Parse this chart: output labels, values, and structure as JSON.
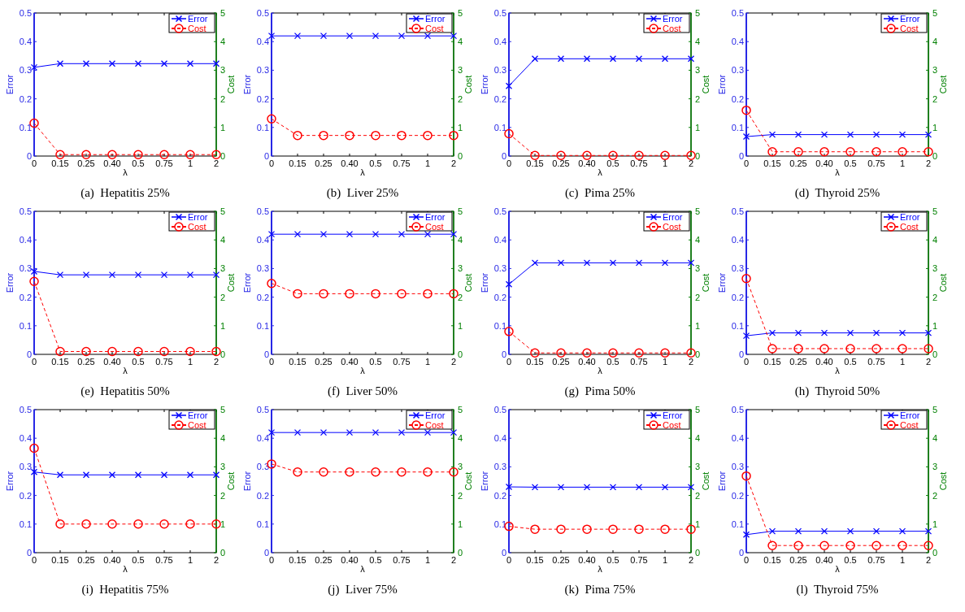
{
  "chart_data": [
    {
      "type": "line",
      "title": "(a)  Hepatitis 25%",
      "categories": [
        "0",
        "0.15",
        "0.25",
        "0.40",
        "0.5",
        "0.75",
        "1",
        "2"
      ],
      "xlabel": "λ",
      "ylabel": "Error",
      "y2label": "Cost",
      "ylim": [
        0,
        0.5
      ],
      "yticks": [
        0,
        0.1,
        0.2,
        0.3,
        0.4,
        0.5
      ],
      "y2lim": [
        0,
        5
      ],
      "y2ticks": [
        0,
        1,
        2,
        3,
        4,
        5
      ],
      "legend": "top right",
      "series": [
        {
          "name": "Error",
          "color": "#0000ff",
          "marker": "cross",
          "line_style": "solid",
          "values": [
            0.31,
            0.323,
            0.323,
            0.323,
            0.323,
            0.323,
            0.323,
            0.323
          ]
        },
        {
          "name": "Cost",
          "color": "#ff0000",
          "marker": "circle",
          "line_style": "dashed",
          "axis": "y2",
          "values": [
            1.15,
            0.05,
            0.05,
            0.05,
            0.05,
            0.05,
            0.05,
            0.05
          ]
        }
      ]
    },
    {
      "type": "line",
      "title": "(b)  Liver 25%",
      "categories": [
        "0",
        "0.15",
        "0.25",
        "0.40",
        "0.5",
        "0.75",
        "1",
        "2"
      ],
      "xlabel": "λ",
      "ylabel": "Error",
      "y2label": "Cost",
      "ylim": [
        0,
        0.5
      ],
      "yticks": [
        0,
        0.1,
        0.2,
        0.3,
        0.4,
        0.5
      ],
      "y2lim": [
        0,
        5
      ],
      "y2ticks": [
        0,
        1,
        2,
        3,
        4,
        5
      ],
      "legend": "top right",
      "series": [
        {
          "name": "Error",
          "color": "#0000ff",
          "marker": "cross",
          "line_style": "solid",
          "values": [
            0.42,
            0.42,
            0.42,
            0.42,
            0.42,
            0.42,
            0.42,
            0.42
          ]
        },
        {
          "name": "Cost",
          "color": "#ff0000",
          "marker": "circle",
          "line_style": "dashed",
          "axis": "y2",
          "values": [
            1.3,
            0.72,
            0.72,
            0.72,
            0.72,
            0.72,
            0.72,
            0.72
          ]
        }
      ]
    },
    {
      "type": "line",
      "title": "(c)  Pima 25%",
      "categories": [
        "0",
        "0.15",
        "0.25",
        "0.40",
        "0.5",
        "0.75",
        "1",
        "2"
      ],
      "xlabel": "λ",
      "ylabel": "Error",
      "y2label": "Cost",
      "ylim": [
        0,
        0.5
      ],
      "yticks": [
        0,
        0.1,
        0.2,
        0.3,
        0.4,
        0.5
      ],
      "y2lim": [
        0,
        5
      ],
      "y2ticks": [
        0,
        1,
        2,
        3,
        4,
        5
      ],
      "legend": "top right",
      "series": [
        {
          "name": "Error",
          "color": "#0000ff",
          "marker": "cross",
          "line_style": "solid",
          "values": [
            0.245,
            0.34,
            0.34,
            0.34,
            0.34,
            0.34,
            0.34,
            0.34
          ]
        },
        {
          "name": "Cost",
          "color": "#ff0000",
          "marker": "circle",
          "line_style": "dashed",
          "axis": "y2",
          "values": [
            0.78,
            0.02,
            0.02,
            0.02,
            0.02,
            0.02,
            0.02,
            0.02
          ]
        }
      ]
    },
    {
      "type": "line",
      "title": "(d)  Thyroid 25%",
      "categories": [
        "0",
        "0.15",
        "0.25",
        "0.40",
        "0.5",
        "0.75",
        "1",
        "2"
      ],
      "xlabel": "λ",
      "ylabel": "Error",
      "y2label": "Cost",
      "ylim": [
        0,
        0.5
      ],
      "yticks": [
        0,
        0.1,
        0.2,
        0.3,
        0.4,
        0.5
      ],
      "y2lim": [
        0,
        5
      ],
      "y2ticks": [
        0,
        1,
        2,
        3,
        4,
        5
      ],
      "legend": "top right",
      "series": [
        {
          "name": "Error",
          "color": "#0000ff",
          "marker": "cross",
          "line_style": "solid",
          "values": [
            0.068,
            0.075,
            0.075,
            0.075,
            0.075,
            0.075,
            0.075,
            0.075
          ]
        },
        {
          "name": "Cost",
          "color": "#ff0000",
          "marker": "circle",
          "line_style": "dashed",
          "axis": "y2",
          "values": [
            1.6,
            0.15,
            0.15,
            0.15,
            0.15,
            0.15,
            0.15,
            0.15
          ]
        }
      ]
    },
    {
      "type": "line",
      "title": "(e)  Hepatitis 50%",
      "categories": [
        "0",
        "0.15",
        "0.25",
        "0.40",
        "0.5",
        "0.75",
        "1",
        "2"
      ],
      "xlabel": "λ",
      "ylabel": "Error",
      "y2label": "Cost",
      "ylim": [
        0,
        0.5
      ],
      "yticks": [
        0,
        0.1,
        0.2,
        0.3,
        0.4,
        0.5
      ],
      "y2lim": [
        0,
        5
      ],
      "y2ticks": [
        0,
        1,
        2,
        3,
        4,
        5
      ],
      "legend": "top right",
      "series": [
        {
          "name": "Error",
          "color": "#0000ff",
          "marker": "cross",
          "line_style": "solid",
          "values": [
            0.29,
            0.278,
            0.278,
            0.278,
            0.278,
            0.278,
            0.278,
            0.278
          ]
        },
        {
          "name": "Cost",
          "color": "#ff0000",
          "marker": "circle",
          "line_style": "dashed",
          "axis": "y2",
          "values": [
            2.55,
            0.1,
            0.1,
            0.1,
            0.1,
            0.1,
            0.1,
            0.1
          ]
        }
      ]
    },
    {
      "type": "line",
      "title": "(f)  Liver 50%",
      "categories": [
        "0",
        "0.15",
        "0.25",
        "0.40",
        "0.5",
        "0.75",
        "1",
        "2"
      ],
      "xlabel": "λ",
      "ylabel": "Error",
      "y2label": "Cost",
      "ylim": [
        0,
        0.5
      ],
      "yticks": [
        0,
        0.1,
        0.2,
        0.3,
        0.4,
        0.5
      ],
      "y2lim": [
        0,
        5
      ],
      "y2ticks": [
        0,
        1,
        2,
        3,
        4,
        5
      ],
      "legend": "top right",
      "series": [
        {
          "name": "Error",
          "color": "#0000ff",
          "marker": "cross",
          "line_style": "solid",
          "values": [
            0.42,
            0.42,
            0.42,
            0.42,
            0.42,
            0.42,
            0.42,
            0.42
          ]
        },
        {
          "name": "Cost",
          "color": "#ff0000",
          "marker": "circle",
          "line_style": "dashed",
          "axis": "y2",
          "values": [
            2.48,
            2.12,
            2.12,
            2.12,
            2.12,
            2.12,
            2.12,
            2.12
          ]
        }
      ]
    },
    {
      "type": "line",
      "title": "(g)  Pima 50%",
      "categories": [
        "0",
        "0.15",
        "0.25",
        "0.40",
        "0.5",
        "0.75",
        "1",
        "2"
      ],
      "xlabel": "λ",
      "ylabel": "Error",
      "y2label": "Cost",
      "ylim": [
        0,
        0.5
      ],
      "yticks": [
        0,
        0.1,
        0.2,
        0.3,
        0.4,
        0.5
      ],
      "y2lim": [
        0,
        5
      ],
      "y2ticks": [
        0,
        1,
        2,
        3,
        4,
        5
      ],
      "legend": "top right",
      "series": [
        {
          "name": "Error",
          "color": "#0000ff",
          "marker": "cross",
          "line_style": "solid",
          "values": [
            0.245,
            0.32,
            0.32,
            0.32,
            0.32,
            0.32,
            0.32,
            0.32
          ]
        },
        {
          "name": "Cost",
          "color": "#ff0000",
          "marker": "circle",
          "line_style": "dashed",
          "axis": "y2",
          "values": [
            0.8,
            0.05,
            0.05,
            0.05,
            0.05,
            0.05,
            0.05,
            0.05
          ]
        }
      ]
    },
    {
      "type": "line",
      "title": "(h)  Thyroid 50%",
      "categories": [
        "0",
        "0.15",
        "0.25",
        "0.40",
        "0.5",
        "0.75",
        "1",
        "2"
      ],
      "xlabel": "λ",
      "ylabel": "Error",
      "y2label": "Cost",
      "ylim": [
        0,
        0.5
      ],
      "yticks": [
        0,
        0.1,
        0.2,
        0.3,
        0.4,
        0.5
      ],
      "y2lim": [
        0,
        5
      ],
      "y2ticks": [
        0,
        1,
        2,
        3,
        4,
        5
      ],
      "legend": "top right",
      "series": [
        {
          "name": "Error",
          "color": "#0000ff",
          "marker": "cross",
          "line_style": "solid",
          "values": [
            0.065,
            0.075,
            0.075,
            0.075,
            0.075,
            0.075,
            0.075,
            0.075
          ]
        },
        {
          "name": "Cost",
          "color": "#ff0000",
          "marker": "circle",
          "line_style": "dashed",
          "axis": "y2",
          "values": [
            2.65,
            0.2,
            0.2,
            0.2,
            0.2,
            0.2,
            0.2,
            0.2
          ]
        }
      ]
    },
    {
      "type": "line",
      "title": "(i)  Hepatitis 75%",
      "categories": [
        "0",
        "0.15",
        "0.25",
        "0.40",
        "0.5",
        "0.75",
        "1",
        "2"
      ],
      "xlabel": "λ",
      "ylabel": "Error",
      "y2label": "Cost",
      "ylim": [
        0,
        0.5
      ],
      "yticks": [
        0,
        0.1,
        0.2,
        0.3,
        0.4,
        0.5
      ],
      "y2lim": [
        0,
        5
      ],
      "y2ticks": [
        0,
        1,
        2,
        3,
        4,
        5
      ],
      "legend": "top right",
      "series": [
        {
          "name": "Error",
          "color": "#0000ff",
          "marker": "cross",
          "line_style": "solid",
          "values": [
            0.282,
            0.272,
            0.272,
            0.272,
            0.272,
            0.272,
            0.272,
            0.272
          ]
        },
        {
          "name": "Cost",
          "color": "#ff0000",
          "marker": "circle",
          "line_style": "dashed",
          "axis": "y2",
          "values": [
            3.65,
            1.0,
            1.0,
            1.0,
            1.0,
            1.0,
            1.0,
            1.0
          ]
        }
      ]
    },
    {
      "type": "line",
      "title": "(j)  Liver 75%",
      "categories": [
        "0",
        "0.15",
        "0.25",
        "0.40",
        "0.5",
        "0.75",
        "1",
        "2"
      ],
      "xlabel": "λ",
      "ylabel": "Error",
      "y2label": "Cost",
      "ylim": [
        0,
        0.5
      ],
      "yticks": [
        0,
        0.1,
        0.2,
        0.3,
        0.4,
        0.5
      ],
      "y2lim": [
        0,
        5
      ],
      "y2ticks": [
        0,
        1,
        2,
        3,
        4,
        5
      ],
      "legend": "top right",
      "series": [
        {
          "name": "Error",
          "color": "#0000ff",
          "marker": "cross",
          "line_style": "solid",
          "values": [
            0.42,
            0.42,
            0.42,
            0.42,
            0.42,
            0.42,
            0.42,
            0.42
          ]
        },
        {
          "name": "Cost",
          "color": "#ff0000",
          "marker": "circle",
          "line_style": "dashed",
          "axis": "y2",
          "values": [
            3.1,
            2.82,
            2.82,
            2.82,
            2.82,
            2.82,
            2.82,
            2.82
          ]
        }
      ]
    },
    {
      "type": "line",
      "title": "(k)  Pima 75%",
      "categories": [
        "0",
        "0.15",
        "0.25",
        "0.40",
        "0.5",
        "0.75",
        "1",
        "2"
      ],
      "xlabel": "λ",
      "ylabel": "Error",
      "y2label": "Cost",
      "ylim": [
        0,
        0.5
      ],
      "yticks": [
        0,
        0.1,
        0.2,
        0.3,
        0.4,
        0.5
      ],
      "y2lim": [
        0,
        5
      ],
      "y2ticks": [
        0,
        1,
        2,
        3,
        4,
        5
      ],
      "legend": "top right",
      "series": [
        {
          "name": "Error",
          "color": "#0000ff",
          "marker": "cross",
          "line_style": "solid",
          "values": [
            0.23,
            0.229,
            0.229,
            0.229,
            0.229,
            0.229,
            0.229,
            0.229
          ]
        },
        {
          "name": "Cost",
          "color": "#ff0000",
          "marker": "circle",
          "line_style": "dashed",
          "axis": "y2",
          "values": [
            0.92,
            0.82,
            0.82,
            0.82,
            0.82,
            0.82,
            0.82,
            0.82
          ]
        }
      ]
    },
    {
      "type": "line",
      "title": "(l)  Thyroid 75%",
      "categories": [
        "0",
        "0.15",
        "0.25",
        "0.40",
        "0.5",
        "0.75",
        "1",
        "2"
      ],
      "xlabel": "λ",
      "ylabel": "Error",
      "y2label": "Cost",
      "ylim": [
        0,
        0.5
      ],
      "yticks": [
        0,
        0.1,
        0.2,
        0.3,
        0.4,
        0.5
      ],
      "y2lim": [
        0,
        5
      ],
      "y2ticks": [
        0,
        1,
        2,
        3,
        4,
        5
      ],
      "legend": "top right",
      "series": [
        {
          "name": "Error",
          "color": "#0000ff",
          "marker": "cross",
          "line_style": "solid",
          "values": [
            0.063,
            0.075,
            0.075,
            0.075,
            0.075,
            0.075,
            0.075,
            0.075
          ]
        },
        {
          "name": "Cost",
          "color": "#ff0000",
          "marker": "circle",
          "line_style": "dashed",
          "axis": "y2",
          "values": [
            2.68,
            0.25,
            0.25,
            0.25,
            0.25,
            0.25,
            0.25,
            0.25
          ]
        }
      ]
    }
  ]
}
